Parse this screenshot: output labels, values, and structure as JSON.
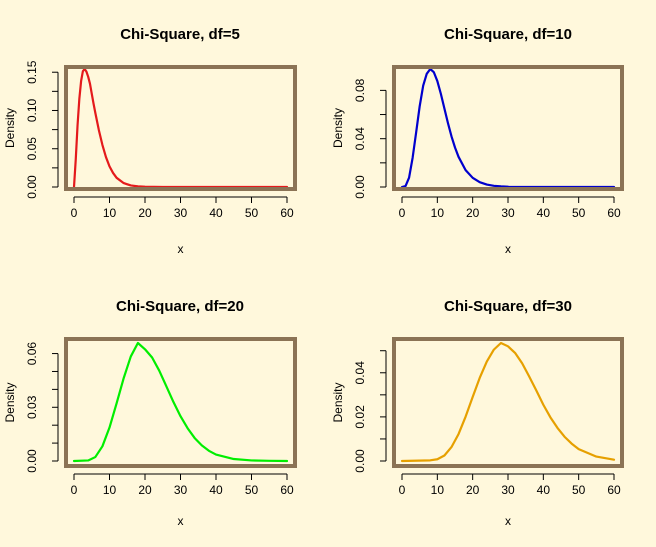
{
  "figure": {
    "background": "#fff8dc",
    "frame_color": "#8b7355"
  },
  "chart_data": [
    {
      "type": "line",
      "df": 5,
      "title": "Chi-Square, df=5",
      "xlabel": "x",
      "ylabel": "Density",
      "xlim": [
        0,
        60
      ],
      "ylim": [
        0,
        0.1542
      ],
      "xticks": [
        0,
        10,
        20,
        30,
        40,
        50,
        60
      ],
      "xtick_labels": [
        "0",
        "10",
        "20",
        "30",
        "40",
        "50",
        "60"
      ],
      "yticks": [
        0,
        0.05,
        0.1,
        0.15
      ],
      "ytick_labels": [
        "0.00",
        "0.05",
        "0.10",
        "0.15"
      ],
      "minor_yticks": [
        0.025,
        0.075,
        0.125
      ],
      "color": "#e41a1c",
      "series": [
        {
          "name": "df=5",
          "x": [
            0,
            0.5,
            1,
            1.5,
            2,
            2.5,
            3,
            3.5,
            4,
            4.5,
            5,
            5.5,
            6,
            7,
            8,
            9,
            10,
            11,
            12,
            14,
            16,
            18,
            20,
            25,
            30,
            40,
            50,
            60
          ],
          "values": [
            0,
            0.0366,
            0.0807,
            0.1151,
            0.1384,
            0.1514,
            0.1542,
            0.1508,
            0.144,
            0.135,
            0.122,
            0.109,
            0.097,
            0.0744,
            0.055,
            0.0391,
            0.027,
            0.0184,
            0.012,
            0.0051,
            0.002,
            0.0008,
            0.0003,
            0.0,
            0.0,
            0.0,
            0.0,
            0.0
          ]
        }
      ]
    },
    {
      "type": "line",
      "df": 10,
      "title": "Chi-Square, df=10",
      "xlabel": "x",
      "ylabel": "Density",
      "xlim": [
        0,
        60
      ],
      "ylim": [
        0,
        0.0977
      ],
      "xticks": [
        0,
        10,
        20,
        30,
        40,
        50,
        60
      ],
      "xtick_labels": [
        "0",
        "10",
        "20",
        "30",
        "40",
        "50",
        "60"
      ],
      "yticks": [
        0,
        0.04,
        0.08
      ],
      "ytick_labels": [
        "0.00",
        "0.04",
        "0.08"
      ],
      "minor_yticks": [
        0.02,
        0.06
      ],
      "color": "#0000cd",
      "series": [
        {
          "name": "df=10",
          "x": [
            0,
            1,
            2,
            3,
            4,
            5,
            6,
            7,
            8,
            9,
            10,
            11,
            12,
            13,
            14,
            15,
            16,
            18,
            20,
            22,
            24,
            26,
            28,
            30,
            35,
            40,
            50,
            60
          ],
          "values": [
            0,
            0.0008,
            0.0077,
            0.0241,
            0.0451,
            0.0668,
            0.084,
            0.0937,
            0.0977,
            0.0951,
            0.0877,
            0.0771,
            0.065,
            0.053,
            0.042,
            0.0327,
            0.025,
            0.014,
            0.0076,
            0.004,
            0.002,
            0.001,
            0.0005,
            0.0002,
            0.0,
            0.0,
            0.0,
            0.0
          ]
        }
      ]
    },
    {
      "type": "line",
      "df": 20,
      "title": "Chi-Square, df=20",
      "xlabel": "x",
      "ylabel": "Density",
      "xlim": [
        0,
        60
      ],
      "ylim": [
        0,
        0.0659
      ],
      "xticks": [
        0,
        10,
        20,
        30,
        40,
        50,
        60
      ],
      "xtick_labels": [
        "0",
        "10",
        "20",
        "30",
        "40",
        "50",
        "60"
      ],
      "yticks": [
        0,
        0.03,
        0.06
      ],
      "ytick_labels": [
        "0.00",
        "0.03",
        "0.06"
      ],
      "minor_yticks": [
        0.01,
        0.02,
        0.04,
        0.05
      ],
      "color": "#00ee00",
      "series": [
        {
          "name": "df=20",
          "x": [
            0,
            4,
            6,
            8,
            10,
            12,
            14,
            16,
            18,
            20,
            22,
            24,
            26,
            28,
            30,
            32,
            34,
            36,
            38,
            40,
            45,
            50,
            55,
            60
          ],
          "values": [
            0,
            0.0003,
            0.0022,
            0.0082,
            0.0187,
            0.0322,
            0.0463,
            0.0584,
            0.0659,
            0.0624,
            0.0578,
            0.0505,
            0.0418,
            0.033,
            0.025,
            0.0183,
            0.0128,
            0.0087,
            0.0057,
            0.0036,
            0.0011,
            0.0003,
            0.0001,
            0.0
          ]
        }
      ]
    },
    {
      "type": "line",
      "df": 30,
      "title": "Chi-Square, df=30",
      "xlabel": "x",
      "ylabel": "Density",
      "xlim": [
        0,
        60
      ],
      "ylim": [
        0,
        0.0535
      ],
      "xticks": [
        0,
        10,
        20,
        30,
        40,
        50,
        60
      ],
      "xtick_labels": [
        "0",
        "10",
        "20",
        "30",
        "40",
        "50",
        "60"
      ],
      "yticks": [
        0,
        0.02,
        0.04
      ],
      "ytick_labels": [
        "0.00",
        "0.02",
        "0.04"
      ],
      "minor_yticks": [
        0.01,
        0.03,
        0.05
      ],
      "color": "#e6a000",
      "series": [
        {
          "name": "df=30",
          "x": [
            0,
            8,
            10,
            12,
            14,
            16,
            18,
            20,
            22,
            24,
            26,
            28,
            30,
            32,
            34,
            36,
            38,
            40,
            42,
            44,
            46,
            48,
            50,
            55,
            60
          ],
          "values": [
            0,
            0.0003,
            0.0008,
            0.0025,
            0.0063,
            0.0122,
            0.0201,
            0.029,
            0.0377,
            0.0451,
            0.0505,
            0.0535,
            0.052,
            0.049,
            0.0443,
            0.0383,
            0.032,
            0.0255,
            0.0198,
            0.015,
            0.011,
            0.0079,
            0.0054,
            0.002,
            0.0006
          ]
        }
      ]
    }
  ]
}
